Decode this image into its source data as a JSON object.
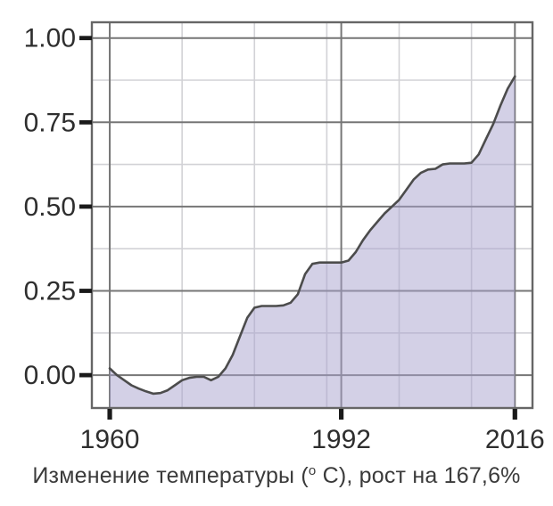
{
  "window": {
    "background": "#ffffff"
  },
  "caption": {
    "part1": "Изменение температуры (",
    "superscript": "o",
    "part2": " C), рост на 167,6%"
  },
  "chart_data": {
    "type": "area",
    "title": "",
    "xlabel": "",
    "ylabel": "",
    "caption_full": "Изменение температуры (°C), рост на 167,6%",
    "growth_percent": "167,6%",
    "legend": "none",
    "grid": true,
    "xlim": [
      1957.53,
      2018.43
    ],
    "ylim": [
      -0.0975,
      1.0468
    ],
    "xticks": [
      {
        "v": 1960,
        "label": "1960"
      },
      {
        "v": 1992,
        "label": "1992"
      },
      {
        "v": 2016,
        "label": "2016"
      }
    ],
    "yticks": [
      {
        "v": 0.0,
        "label": "0.00"
      },
      {
        "v": 0.25,
        "label": "0.25"
      },
      {
        "v": 0.5,
        "label": "0.50"
      },
      {
        "v": 0.75,
        "label": "0.75"
      },
      {
        "v": 1.0,
        "label": "1.00"
      }
    ],
    "minor_xticks": [
      1970,
      1980,
      1990,
      2000,
      2010
    ],
    "minor_yticks": [
      0.125,
      0.375,
      0.625,
      0.875
    ],
    "x": [
      1960,
      1961,
      1962,
      1963,
      1964,
      1965,
      1966,
      1967,
      1968,
      1969,
      1970,
      1971,
      1972,
      1973,
      1974,
      1975,
      1976,
      1977,
      1978,
      1979,
      1980,
      1981,
      1982,
      1983,
      1984,
      1985,
      1986,
      1987,
      1988,
      1989,
      1990,
      1991,
      1992,
      1993,
      1994,
      1995,
      1996,
      1997,
      1998,
      1999,
      2000,
      2001,
      2002,
      2003,
      2004,
      2005,
      2006,
      2007,
      2008,
      2009,
      2010,
      2011,
      2012,
      2013,
      2014,
      2015,
      2016
    ],
    "y": [
      0.02,
      0.0,
      -0.015,
      -0.03,
      -0.04,
      -0.048,
      -0.055,
      -0.053,
      -0.045,
      -0.03,
      -0.015,
      -0.008,
      -0.005,
      -0.005,
      -0.015,
      -0.005,
      0.02,
      0.06,
      0.115,
      0.17,
      0.2,
      0.205,
      0.205,
      0.205,
      0.207,
      0.215,
      0.24,
      0.3,
      0.33,
      0.334,
      0.334,
      0.334,
      0.334,
      0.34,
      0.365,
      0.4,
      0.43,
      0.455,
      0.48,
      0.5,
      0.52,
      0.55,
      0.58,
      0.6,
      0.61,
      0.612,
      0.625,
      0.628,
      0.628,
      0.628,
      0.63,
      0.655,
      0.7,
      0.745,
      0.8,
      0.85,
      0.886
    ],
    "colors": {
      "area_fill": "#a7a2cd",
      "area_fill_opacity": 0.5,
      "line": "#4c4c4c",
      "major_grid": "#767676",
      "minor_grid": "#d2d2d6",
      "border": "#666666",
      "tick": "#1a1a1a",
      "label": "#2e2e2e"
    }
  }
}
